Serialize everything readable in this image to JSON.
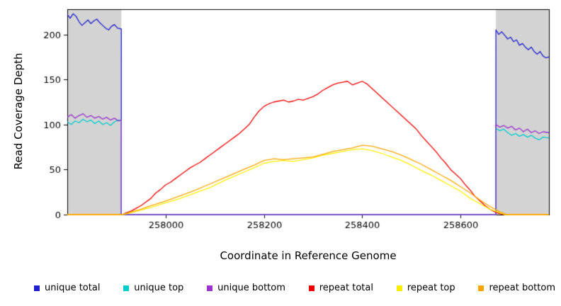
{
  "chart_data": {
    "type": "line",
    "title": "",
    "xlabel": "Coordinate in Reference Genome",
    "ylabel": "Read Coverage Depth",
    "xlim": [
      257800,
      258780
    ],
    "ylim": [
      0,
      228
    ],
    "x_ticks": [
      258000,
      258200,
      258400,
      258600
    ],
    "y_ticks": [
      0,
      50,
      100,
      150,
      200
    ],
    "grid": false,
    "legend_position": "bottom",
    "shade_color": "#d3d3d3",
    "shaded_regions": [
      [
        257800,
        257910
      ],
      [
        258672,
        258780
      ]
    ],
    "legend": [
      "unique total",
      "unique top",
      "unique bottom",
      "repeat total",
      "repeat top",
      "repeat bottom"
    ],
    "series": [
      {
        "name": "unique total",
        "color": "#2020d0",
        "points": [
          [
            257800,
            222
          ],
          [
            257806,
            218
          ],
          [
            257812,
            223
          ],
          [
            257818,
            220
          ],
          [
            257824,
            214
          ],
          [
            257830,
            210
          ],
          [
            257836,
            213
          ],
          [
            257842,
            216
          ],
          [
            257848,
            212
          ],
          [
            257854,
            215
          ],
          [
            257860,
            217
          ],
          [
            257866,
            213
          ],
          [
            257872,
            210
          ],
          [
            257878,
            207
          ],
          [
            257884,
            205
          ],
          [
            257890,
            209
          ],
          [
            257896,
            211
          ],
          [
            257902,
            207
          ],
          [
            257910,
            206
          ],
          [
            257910,
            0
          ],
          [
            258672,
            0
          ],
          [
            258672,
            205
          ],
          [
            258678,
            200
          ],
          [
            258684,
            203
          ],
          [
            258690,
            199
          ],
          [
            258696,
            195
          ],
          [
            258702,
            197
          ],
          [
            258708,
            192
          ],
          [
            258714,
            194
          ],
          [
            258720,
            188
          ],
          [
            258726,
            190
          ],
          [
            258732,
            186
          ],
          [
            258738,
            183
          ],
          [
            258744,
            186
          ],
          [
            258750,
            181
          ],
          [
            258756,
            178
          ],
          [
            258762,
            181
          ],
          [
            258768,
            176
          ],
          [
            258774,
            174
          ],
          [
            258780,
            175
          ]
        ]
      },
      {
        "name": "unique top",
        "color": "#00cccc",
        "points": [
          [
            257800,
            103
          ],
          [
            257808,
            100
          ],
          [
            257816,
            104
          ],
          [
            257824,
            102
          ],
          [
            257832,
            106
          ],
          [
            257840,
            103
          ],
          [
            257848,
            105
          ],
          [
            257856,
            101
          ],
          [
            257864,
            104
          ],
          [
            257872,
            100
          ],
          [
            257880,
            102
          ],
          [
            257888,
            99
          ],
          [
            257896,
            103
          ],
          [
            257904,
            105
          ],
          [
            257910,
            104
          ],
          [
            257910,
            0
          ],
          [
            258672,
            0
          ],
          [
            258672,
            96
          ],
          [
            258680,
            93
          ],
          [
            258688,
            95
          ],
          [
            258696,
            91
          ],
          [
            258704,
            88
          ],
          [
            258712,
            90
          ],
          [
            258720,
            87
          ],
          [
            258728,
            89
          ],
          [
            258736,
            86
          ],
          [
            258744,
            88
          ],
          [
            258752,
            85
          ],
          [
            258760,
            83
          ],
          [
            258768,
            86
          ],
          [
            258780,
            85
          ]
        ]
      },
      {
        "name": "unique bottom",
        "color": "#9933cc",
        "points": [
          [
            257800,
            108
          ],
          [
            257808,
            111
          ],
          [
            257816,
            107
          ],
          [
            257824,
            110
          ],
          [
            257832,
            112
          ],
          [
            257840,
            108
          ],
          [
            257848,
            110
          ],
          [
            257856,
            107
          ],
          [
            257864,
            109
          ],
          [
            257872,
            106
          ],
          [
            257880,
            108
          ],
          [
            257888,
            105
          ],
          [
            257896,
            107
          ],
          [
            257904,
            104
          ],
          [
            257910,
            105
          ],
          [
            257910,
            0
          ],
          [
            258672,
            0
          ],
          [
            258672,
            100
          ],
          [
            258680,
            97
          ],
          [
            258688,
            99
          ],
          [
            258696,
            96
          ],
          [
            258704,
            98
          ],
          [
            258712,
            94
          ],
          [
            258720,
            96
          ],
          [
            258728,
            92
          ],
          [
            258736,
            95
          ],
          [
            258744,
            91
          ],
          [
            258752,
            93
          ],
          [
            258760,
            90
          ],
          [
            258768,
            92
          ],
          [
            258780,
            91
          ]
        ]
      },
      {
        "name": "repeat total",
        "color": "#ee0000",
        "points": [
          [
            257800,
            0
          ],
          [
            257912,
            0
          ],
          [
            257920,
            2
          ],
          [
            257930,
            4
          ],
          [
            257940,
            7
          ],
          [
            257950,
            10
          ],
          [
            257960,
            14
          ],
          [
            257970,
            18
          ],
          [
            257980,
            24
          ],
          [
            257990,
            28
          ],
          [
            258000,
            33
          ],
          [
            258010,
            36
          ],
          [
            258020,
            40
          ],
          [
            258030,
            44
          ],
          [
            258040,
            48
          ],
          [
            258050,
            52
          ],
          [
            258060,
            55
          ],
          [
            258070,
            58
          ],
          [
            258080,
            62
          ],
          [
            258090,
            66
          ],
          [
            258100,
            70
          ],
          [
            258110,
            74
          ],
          [
            258120,
            78
          ],
          [
            258130,
            82
          ],
          [
            258140,
            86
          ],
          [
            258150,
            90
          ],
          [
            258160,
            95
          ],
          [
            258170,
            100
          ],
          [
            258180,
            108
          ],
          [
            258190,
            115
          ],
          [
            258200,
            120
          ],
          [
            258210,
            123
          ],
          [
            258220,
            125
          ],
          [
            258230,
            126
          ],
          [
            258240,
            127
          ],
          [
            258250,
            125
          ],
          [
            258260,
            126
          ],
          [
            258270,
            128
          ],
          [
            258280,
            127
          ],
          [
            258290,
            129
          ],
          [
            258300,
            131
          ],
          [
            258310,
            134
          ],
          [
            258320,
            138
          ],
          [
            258330,
            141
          ],
          [
            258340,
            144
          ],
          [
            258350,
            146
          ],
          [
            258360,
            147
          ],
          [
            258370,
            148
          ],
          [
            258380,
            144
          ],
          [
            258390,
            146
          ],
          [
            258400,
            148
          ],
          [
            258410,
            145
          ],
          [
            258420,
            140
          ],
          [
            258430,
            135
          ],
          [
            258440,
            130
          ],
          [
            258450,
            125
          ],
          [
            258460,
            120
          ],
          [
            258470,
            115
          ],
          [
            258480,
            110
          ],
          [
            258490,
            105
          ],
          [
            258500,
            100
          ],
          [
            258510,
            95
          ],
          [
            258520,
            88
          ],
          [
            258530,
            82
          ],
          [
            258540,
            76
          ],
          [
            258550,
            70
          ],
          [
            258560,
            63
          ],
          [
            258570,
            57
          ],
          [
            258580,
            50
          ],
          [
            258590,
            45
          ],
          [
            258600,
            40
          ],
          [
            258610,
            33
          ],
          [
            258620,
            27
          ],
          [
            258630,
            20
          ],
          [
            258640,
            15
          ],
          [
            258650,
            10
          ],
          [
            258660,
            6
          ],
          [
            258670,
            3
          ],
          [
            258680,
            1
          ],
          [
            258690,
            0
          ],
          [
            258780,
            0
          ]
        ]
      },
      {
        "name": "repeat top",
        "color": "#ffee00",
        "points": [
          [
            257800,
            0
          ],
          [
            257912,
            0
          ],
          [
            257930,
            2
          ],
          [
            257950,
            5
          ],
          [
            257970,
            8
          ],
          [
            258000,
            13
          ],
          [
            258030,
            18
          ],
          [
            258060,
            24
          ],
          [
            258090,
            30
          ],
          [
            258120,
            38
          ],
          [
            258150,
            45
          ],
          [
            258180,
            52
          ],
          [
            258200,
            57
          ],
          [
            258220,
            59
          ],
          [
            258240,
            60
          ],
          [
            258260,
            59
          ],
          [
            258280,
            61
          ],
          [
            258300,
            63
          ],
          [
            258320,
            66
          ],
          [
            258340,
            68
          ],
          [
            258360,
            70
          ],
          [
            258380,
            72
          ],
          [
            258400,
            73
          ],
          [
            258420,
            71
          ],
          [
            258440,
            68
          ],
          [
            258460,
            64
          ],
          [
            258480,
            60
          ],
          [
            258500,
            55
          ],
          [
            258520,
            49
          ],
          [
            258540,
            44
          ],
          [
            258560,
            38
          ],
          [
            258580,
            32
          ],
          [
            258600,
            26
          ],
          [
            258620,
            18
          ],
          [
            258640,
            12
          ],
          [
            258660,
            6
          ],
          [
            258680,
            2
          ],
          [
            258690,
            0
          ],
          [
            258780,
            0
          ]
        ]
      },
      {
        "name": "repeat bottom",
        "color": "#ffa500",
        "points": [
          [
            257800,
            0
          ],
          [
            257912,
            0
          ],
          [
            257930,
            3
          ],
          [
            257950,
            6
          ],
          [
            257970,
            10
          ],
          [
            258000,
            15
          ],
          [
            258030,
            21
          ],
          [
            258060,
            27
          ],
          [
            258090,
            34
          ],
          [
            258120,
            41
          ],
          [
            258150,
            48
          ],
          [
            258180,
            55
          ],
          [
            258200,
            60
          ],
          [
            258220,
            62
          ],
          [
            258240,
            61
          ],
          [
            258260,
            62
          ],
          [
            258280,
            63
          ],
          [
            258300,
            64
          ],
          [
            258320,
            67
          ],
          [
            258340,
            70
          ],
          [
            258360,
            72
          ],
          [
            258380,
            74
          ],
          [
            258400,
            77
          ],
          [
            258420,
            76
          ],
          [
            258440,
            73
          ],
          [
            258460,
            70
          ],
          [
            258480,
            66
          ],
          [
            258500,
            61
          ],
          [
            258520,
            56
          ],
          [
            258540,
            50
          ],
          [
            258560,
            44
          ],
          [
            258580,
            38
          ],
          [
            258600,
            31
          ],
          [
            258620,
            24
          ],
          [
            258640,
            16
          ],
          [
            258660,
            9
          ],
          [
            258680,
            3
          ],
          [
            258695,
            0
          ],
          [
            258780,
            0
          ]
        ]
      }
    ]
  }
}
